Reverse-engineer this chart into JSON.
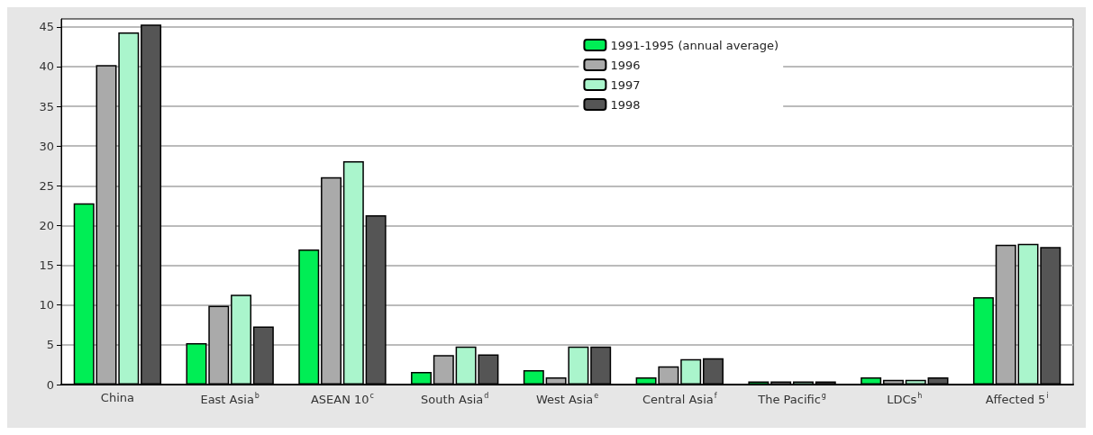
{
  "chart_data": {
    "type": "bar",
    "categories": [
      "China",
      "East Asia$^{b}$",
      "ASEAN 10$^{c}$",
      "South Asia$^{d}$",
      "West Asia$^{e}$",
      "Central Asia$^{f}$",
      "The Pacific$^{g}$",
      "LDCs$^{h}$",
      "Affected 5$^{i}$"
    ],
    "series": [
      {
        "name": "1991-1995 (annual average)",
        "color": "#00ee55",
        "values": [
          22.8,
          5.2,
          17.0,
          1.6,
          1.8,
          0.9,
          0.4,
          0.9,
          11.0
        ]
      },
      {
        "name": "1996",
        "color": "#aaaaaa",
        "values": [
          40.2,
          9.9,
          26.1,
          3.7,
          0.9,
          2.3,
          0.4,
          0.6,
          17.6
        ]
      },
      {
        "name": "1997",
        "color": "#aaf5cc",
        "values": [
          44.3,
          11.3,
          28.1,
          4.8,
          4.8,
          3.2,
          0.4,
          0.6,
          17.7
        ]
      },
      {
        "name": "1998",
        "color": "#555555",
        "values": [
          45.3,
          7.3,
          21.3,
          3.8,
          4.8,
          3.3,
          0.4,
          0.9,
          17.3
        ]
      }
    ],
    "ylim": [
      0,
      46
    ],
    "yticks": [
      0,
      5,
      10,
      15,
      20,
      25,
      30,
      35,
      40,
      45
    ],
    "grid": "y",
    "legend": "top"
  }
}
